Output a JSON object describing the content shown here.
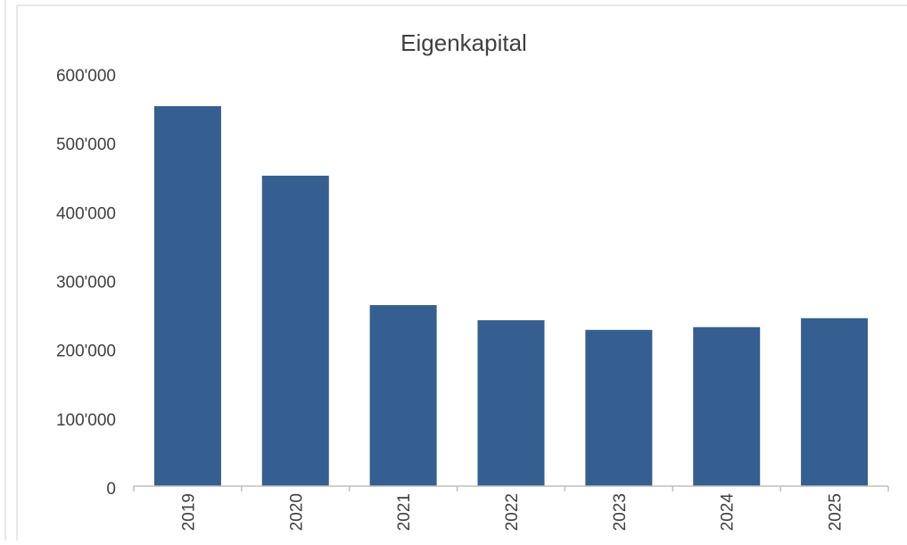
{
  "chart_data": {
    "type": "bar",
    "title": "Eigenkapital",
    "categories": [
      "2019",
      "2020",
      "2021",
      "2022",
      "2023",
      "2024",
      "2025"
    ],
    "values": [
      552000,
      451000,
      263000,
      241000,
      227000,
      231000,
      244000
    ],
    "ylim": [
      0,
      600000
    ],
    "yticks": [
      {
        "value": 0,
        "label": "0"
      },
      {
        "value": 100000,
        "label": "100'000"
      },
      {
        "value": 200000,
        "label": "200'000"
      },
      {
        "value": 300000,
        "label": "300'000"
      },
      {
        "value": 400000,
        "label": "400'000"
      },
      {
        "value": 500000,
        "label": "500'000"
      },
      {
        "value": 600000,
        "label": "600'000"
      }
    ],
    "xlabel": "",
    "ylabel": "",
    "grid": false,
    "legend": "none",
    "bar_color": "#355f91"
  }
}
